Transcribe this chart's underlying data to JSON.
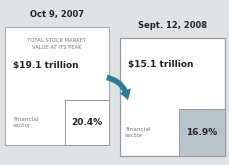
{
  "bg_color": "#e0e3e6",
  "date1": "Oct 9, 2007",
  "date2": "Sept. 12, 2008",
  "value1": "$19.1 trillion",
  "value2": "$15.1 trillion",
  "subtitle": "TOTAL STOCK MARKET\nVALUE AT ITS PEAK",
  "sector_label": "Financial\nsector",
  "pct1": "20.4%",
  "pct2": "16.9%",
  "box1_color": "#ffffff",
  "box1_border": "#aaaaaa",
  "box2_color": "#ffffff",
  "box2_border": "#999999",
  "inner_box1_color": "#ffffff",
  "inner_box1_border": "#999999",
  "inner_box2_color": "#b8c4cc",
  "inner_box2_border": "#999999",
  "arrow_color": "#2e7d99",
  "date_fontsize": 6.0,
  "value_fontsize": 6.5,
  "subtitle_fontsize": 3.8,
  "pct_fontsize": 6.5,
  "sector_fontsize": 4.2,
  "text_color_dark": "#222222",
  "text_color_mid": "#777777"
}
